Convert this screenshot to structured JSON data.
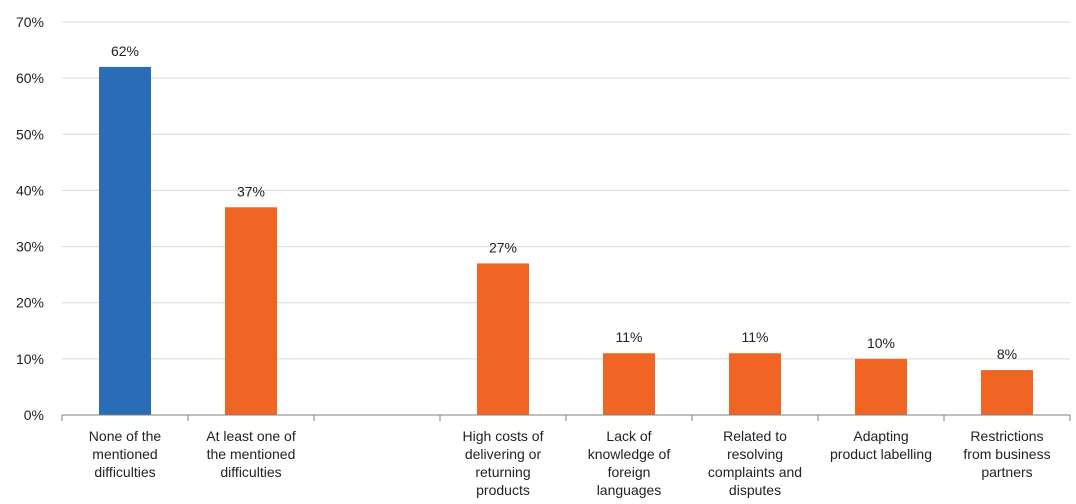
{
  "chart_data": {
    "type": "bar",
    "title": "",
    "xlabel": "",
    "ylabel": "",
    "ylim": [
      0,
      70
    ],
    "yticks": [
      "0%",
      "10%",
      "20%",
      "30%",
      "40%",
      "50%",
      "60%",
      "70%"
    ],
    "grid": true,
    "legend": "none",
    "categories": [
      [
        "None of the",
        "mentioned",
        "difficulties"
      ],
      [
        "At least one of",
        "the mentioned",
        "difficulties"
      ],
      [],
      [
        "High costs of",
        "delivering or",
        "returning",
        "products"
      ],
      [
        "Lack of",
        "knowledge of",
        "foreign",
        "languages"
      ],
      [
        "Related to",
        "resolving",
        "complaints and",
        "disputes"
      ],
      [
        "Adapting",
        "product labelling"
      ],
      [
        "Restrictions",
        "from business",
        "partners"
      ]
    ],
    "values": [
      62,
      37,
      null,
      27,
      11,
      11,
      10,
      8
    ],
    "value_labels": [
      "62%",
      "37%",
      "",
      "27%",
      "11%",
      "11%",
      "10%",
      "8%"
    ],
    "colors": [
      "#2a6db6",
      "#f06424",
      null,
      "#f06424",
      "#f06424",
      "#f06424",
      "#f06424",
      "#f06424"
    ]
  }
}
